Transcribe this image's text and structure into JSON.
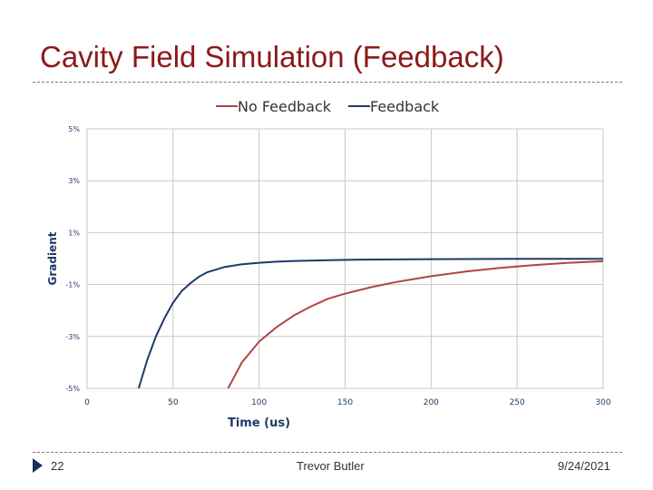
{
  "slide": {
    "title": "Cavity Field Simulation (Feedback)",
    "page_number": "22",
    "author": "Trevor Butler",
    "date": "9/24/2021"
  },
  "colors": {
    "title": "#8b1a1a",
    "no_feedback": "#b04545",
    "feedback": "#1f3a66",
    "grid": "#c8c8c8",
    "axis_text": "#1f3a66"
  },
  "chart_data": {
    "type": "line",
    "title": "",
    "xlabel": "Time (us)",
    "ylabel": "Gradient",
    "xlim": [
      0,
      300
    ],
    "ylim": [
      -5,
      5
    ],
    "x_ticks": [
      0,
      50,
      100,
      150,
      200,
      250,
      300
    ],
    "x_tick_labels": [
      "0",
      "50",
      "100",
      "150",
      "200",
      "250",
      "300"
    ],
    "y_ticks": [
      5,
      3,
      1,
      -1,
      -3,
      -5
    ],
    "y_tick_labels": [
      "5%",
      "3%",
      "1%",
      "-1%",
      "-3%",
      "-5%"
    ],
    "grid": true,
    "legend_position": "top-center",
    "series": [
      {
        "name": "No Feedback",
        "x": [
          82,
          90,
          100,
          110,
          120,
          130,
          140,
          150,
          165,
          180,
          200,
          220,
          240,
          260,
          280,
          300
        ],
        "y": [
          -5.0,
          -4.0,
          -3.2,
          -2.65,
          -2.2,
          -1.85,
          -1.55,
          -1.35,
          -1.1,
          -0.9,
          -0.68,
          -0.5,
          -0.36,
          -0.25,
          -0.16,
          -0.1
        ]
      },
      {
        "name": "Feedback",
        "x": [
          30,
          35,
          40,
          45,
          50,
          55,
          60,
          65,
          70,
          80,
          90,
          100,
          110,
          120,
          140,
          160,
          180,
          200,
          250,
          300
        ],
        "y": [
          -5.0,
          -3.9,
          -3.0,
          -2.3,
          -1.7,
          -1.25,
          -0.95,
          -0.7,
          -0.52,
          -0.32,
          -0.22,
          -0.16,
          -0.12,
          -0.09,
          -0.06,
          -0.04,
          -0.03,
          -0.02,
          -0.01,
          -0.01
        ]
      }
    ]
  }
}
